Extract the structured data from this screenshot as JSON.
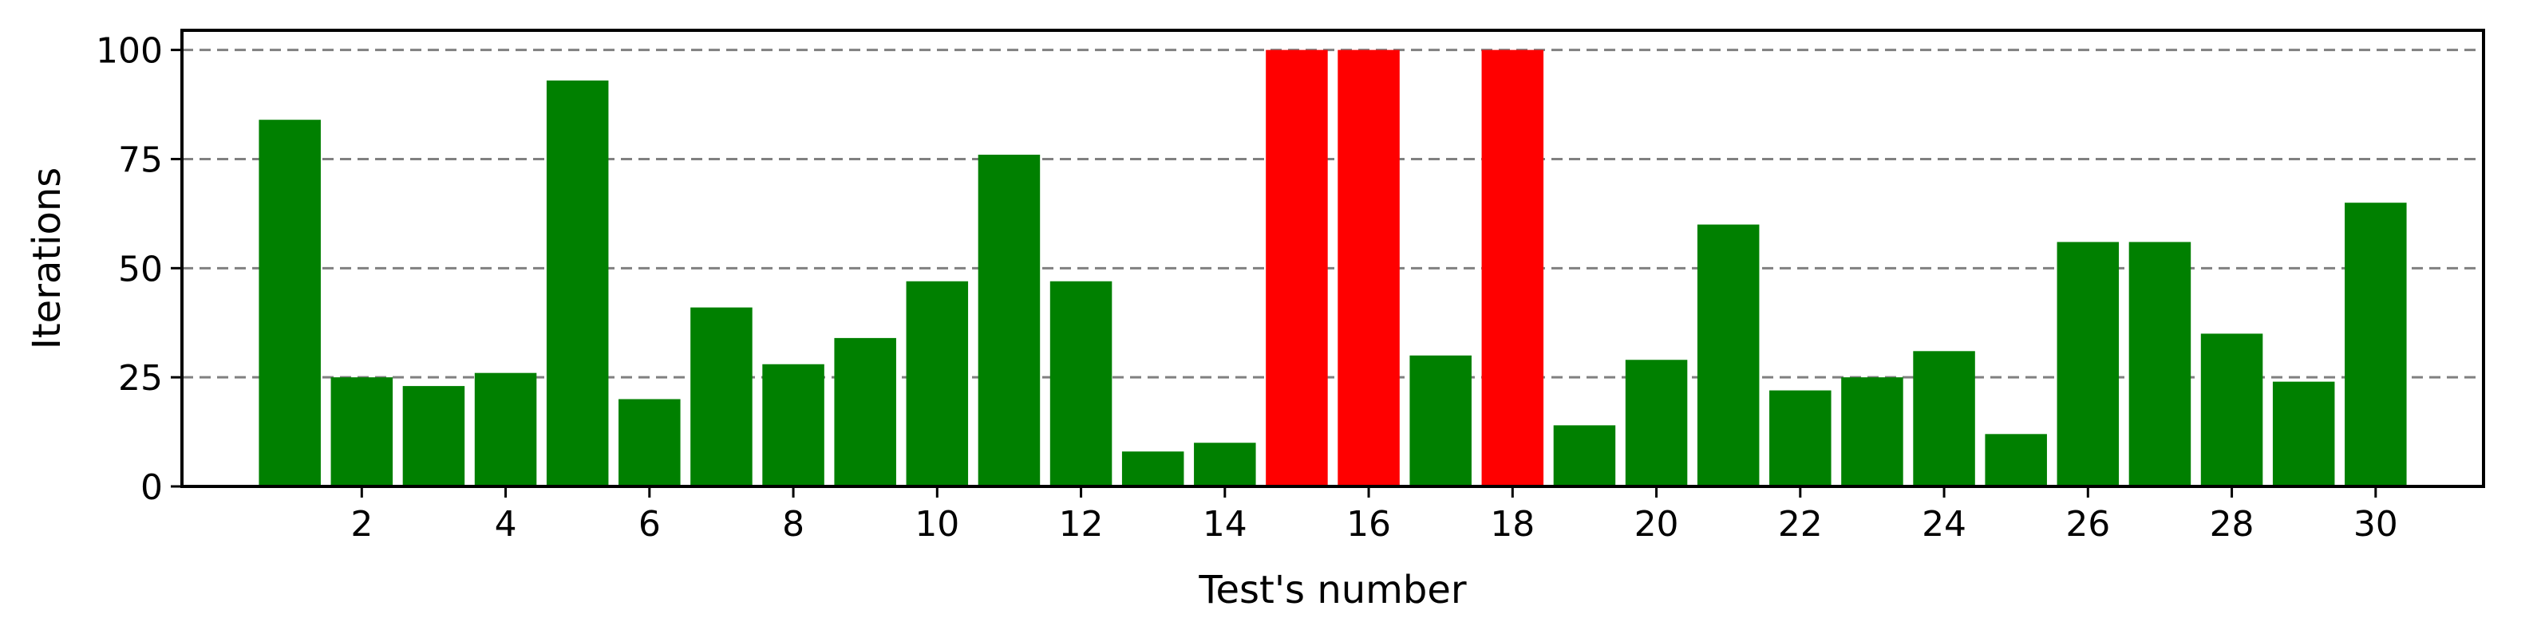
{
  "chart_data": {
    "type": "bar",
    "title": "",
    "xlabel": "Test's number",
    "ylabel": "Iterations",
    "categories": [
      1,
      2,
      3,
      4,
      5,
      6,
      7,
      8,
      9,
      10,
      11,
      12,
      13,
      14,
      15,
      16,
      17,
      18,
      19,
      20,
      21,
      22,
      23,
      24,
      25,
      26,
      27,
      28,
      29,
      30
    ],
    "values": [
      84,
      25,
      23,
      26,
      93,
      20,
      41,
      28,
      34,
      47,
      76,
      47,
      8,
      10,
      100,
      100,
      30,
      100,
      14,
      29,
      60,
      22,
      25,
      31,
      12,
      56,
      56,
      35,
      24,
      65
    ],
    "bar_colors": [
      "#008000",
      "#008000",
      "#008000",
      "#008000",
      "#008000",
      "#008000",
      "#008000",
      "#008000",
      "#008000",
      "#008000",
      "#008000",
      "#008000",
      "#008000",
      "#008000",
      "#ff0000",
      "#ff0000",
      "#008000",
      "#ff0000",
      "#008000",
      "#008000",
      "#008000",
      "#008000",
      "#008000",
      "#008000",
      "#008000",
      "#008000",
      "#008000",
      "#008000",
      "#008000",
      "#008000"
    ],
    "xticks": [
      2,
      4,
      6,
      8,
      10,
      12,
      14,
      16,
      18,
      20,
      22,
      24,
      26,
      28,
      30
    ],
    "yticks": [
      0,
      25,
      50,
      75,
      100
    ],
    "xlim": [
      -0.5,
      31.5
    ],
    "ylim": [
      0,
      104.5
    ],
    "grid": "horizontal-dashed",
    "colors": {
      "normal": "#008000",
      "max_reached": "#ff0000",
      "grid": "#808080"
    }
  }
}
